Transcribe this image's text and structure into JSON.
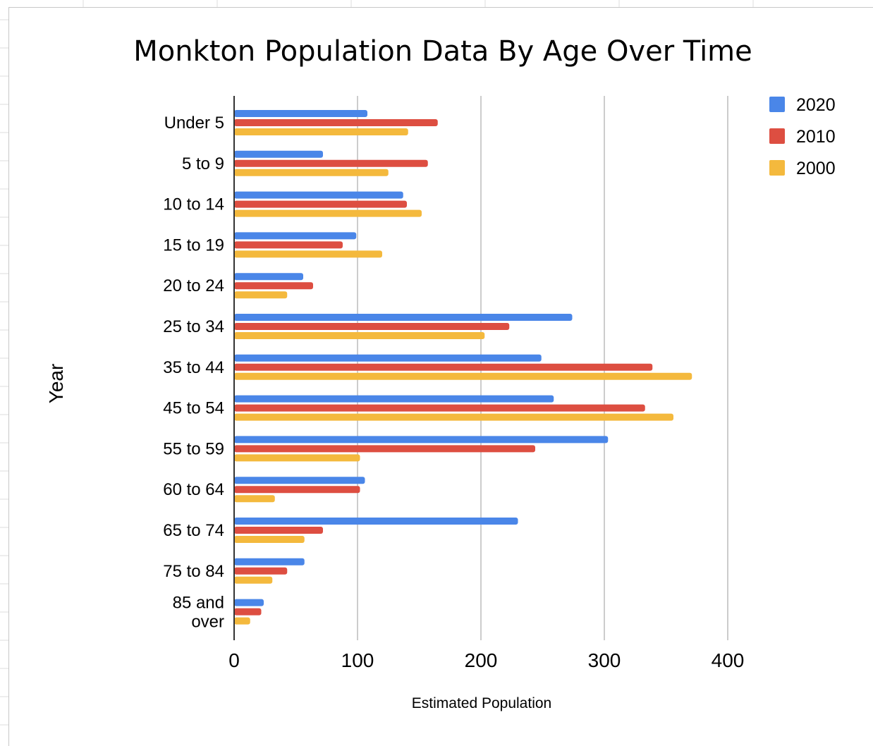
{
  "chart_data": {
    "type": "bar",
    "orientation": "horizontal",
    "title": "Monkton Population Data By Age Over Time",
    "xlabel": "Estimated Population",
    "ylabel": "Year",
    "xlim": [
      0,
      400
    ],
    "x_ticks": [
      "0",
      "100",
      "200",
      "300",
      "400"
    ],
    "grid": true,
    "legend_position": "top-right",
    "categories": [
      "Under 5",
      "5 to 9",
      "10 to 14",
      "15 to 19",
      "20 to 24",
      "25 to 34",
      "35 to 44",
      "45 to 54",
      "55 to 59",
      "60 to 64",
      "65 to 74",
      "75 to 84",
      "85 and over"
    ],
    "series": [
      {
        "name": "2020",
        "color": "#4a86e8",
        "values": [
          108,
          72,
          137,
          99,
          56,
          274,
          249,
          259,
          303,
          106,
          230,
          57,
          24
        ]
      },
      {
        "name": "2010",
        "color": "#dd4e41",
        "values": [
          165,
          157,
          140,
          88,
          64,
          223,
          339,
          333,
          244,
          102,
          72,
          43,
          22
        ]
      },
      {
        "name": "2000",
        "color": "#f4b93d",
        "values": [
          141,
          125,
          152,
          120,
          43,
          203,
          371,
          356,
          102,
          33,
          57,
          31,
          13
        ]
      }
    ]
  }
}
